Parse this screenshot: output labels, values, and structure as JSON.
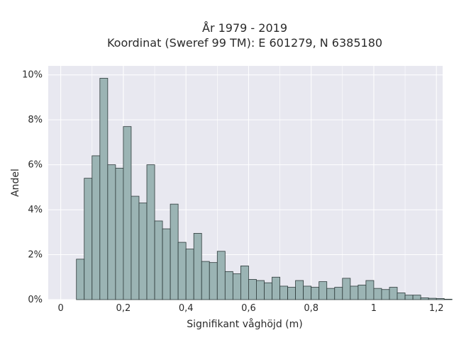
{
  "chart_data": {
    "type": "bar",
    "title": "År 1979 - 2019",
    "subtitle": "Koordinat (Sweref 99 TM): E 601279, N 6385180",
    "xlabel": "Signifikant våghöjd (m)",
    "ylabel": "Andel",
    "xlim": [
      -0.04,
      1.22
    ],
    "ylim": [
      0,
      10.4
    ],
    "x_ticks": [
      0,
      0.2,
      0.4,
      0.6,
      0.8,
      1,
      1.2
    ],
    "x_tick_labels": [
      "0",
      "0,2",
      "0,4",
      "0,6",
      "0,8",
      "1",
      "1,2"
    ],
    "y_ticks": [
      0,
      2,
      4,
      6,
      8,
      10
    ],
    "y_tick_labels": [
      "0%",
      "2%",
      "4%",
      "6%",
      "8%",
      "10%"
    ],
    "grid": true,
    "bin_width": 0.025,
    "bin_start": 0.0,
    "values": [
      0,
      0,
      1.8,
      5.4,
      6.4,
      9.85,
      6.0,
      5.85,
      7.7,
      4.6,
      4.3,
      6.0,
      3.5,
      3.15,
      4.25,
      2.55,
      2.25,
      2.95,
      1.7,
      1.65,
      2.15,
      1.25,
      1.15,
      1.5,
      0.9,
      0.85,
      0.75,
      1.0,
      0.6,
      0.55,
      0.85,
      0.6,
      0.55,
      0.8,
      0.5,
      0.55,
      0.95,
      0.6,
      0.65,
      0.85,
      0.5,
      0.45,
      0.55,
      0.3,
      0.2,
      0.2,
      0.08,
      0.06,
      0.05,
      0.02
    ],
    "colors": {
      "plot_background": "#e8e8f0",
      "bar_fill": "#9bb4b4",
      "bar_stroke": "#2d3a3a",
      "grid": "#ffffff"
    }
  }
}
